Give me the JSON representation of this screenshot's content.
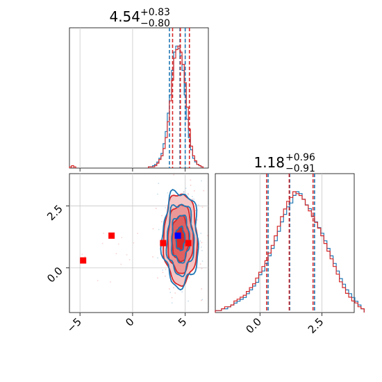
{
  "chart_data": {
    "type": "scatter",
    "subtype": "corner-plot",
    "colors": {
      "blue": "#1f77b4",
      "red": "#d62728",
      "grid": "#c8c8c8",
      "marker_blue": "#0000ff",
      "marker_red": "#ff0000"
    },
    "parameters": [
      {
        "title_value": "4.54",
        "title_plus": "+0.83",
        "title_minus": "−0.80",
        "range": [
          -6.0,
          7.2
        ],
        "ticks": [
          -5,
          0,
          5
        ],
        "tick_labels": [
          "−5",
          "0",
          "5"
        ],
        "quantiles_blue": [
          3.5,
          4.5,
          5.0
        ],
        "quantiles_red": [
          3.8,
          4.54,
          5.4
        ],
        "grid_lines": [
          -5,
          0,
          5
        ]
      },
      {
        "title_value": "1.18",
        "title_plus": "+0.96",
        "title_minus": "−0.91",
        "range": [
          -1.8,
          3.8
        ],
        "ticks": [
          0.0,
          2.5
        ],
        "tick_labels": [
          "0.0",
          "2.5"
        ],
        "quantiles_blue": [
          0.33,
          1.2,
          2.2
        ],
        "quantiles_red": [
          0.27,
          1.18,
          2.14
        ],
        "grid_lines": [
          0.0,
          2.5
        ]
      }
    ],
    "hist_1d": [
      {
        "bin_start": 1.5,
        "bin_width": 0.2,
        "blue": [
          1,
          1,
          2,
          3,
          5,
          8,
          12,
          20,
          30,
          45,
          60,
          80,
          95,
          100,
          98,
          92,
          80,
          60,
          40,
          25,
          15,
          8,
          5,
          3,
          2,
          1
        ],
        "red": [
          1,
          1,
          1,
          2,
          4,
          7,
          10,
          16,
          25,
          38,
          55,
          72,
          90,
          97,
          100,
          95,
          85,
          70,
          50,
          32,
          18,
          10,
          6,
          3,
          2,
          1
        ],
        "red_tail": [
          [
            -6.0,
            1
          ],
          [
            -5.8,
            2
          ],
          [
            -5.6,
            1
          ]
        ]
      },
      {
        "bin_start": -1.8,
        "bin_width": 0.125,
        "blue": [
          1,
          1,
          2,
          2,
          3,
          4,
          5,
          6,
          7,
          8,
          10,
          12,
          14,
          16,
          20,
          22,
          26,
          30,
          34,
          38,
          43,
          48,
          52,
          56,
          58,
          62,
          64,
          63,
          60,
          57,
          55,
          51,
          48,
          45,
          42,
          38,
          34,
          30,
          26,
          22,
          18,
          15,
          12,
          10,
          8,
          6,
          4,
          2
        ],
        "red": [
          1,
          1,
          2,
          3,
          3,
          4,
          6,
          7,
          8,
          9,
          11,
          13,
          15,
          18,
          21,
          24,
          27,
          31,
          35,
          40,
          45,
          50,
          54,
          58,
          60,
          63,
          62,
          61,
          59,
          56,
          53,
          50,
          47,
          44,
          40,
          36,
          32,
          28,
          24,
          20,
          16,
          13,
          10,
          8,
          6,
          5,
          3,
          2
        ]
      }
    ],
    "markers_2d": [
      {
        "color": "red",
        "x": -4.7,
        "y": 0.3
      },
      {
        "color": "red",
        "x": -2.0,
        "y": 1.3
      },
      {
        "color": "red",
        "x": 2.9,
        "y": 1.0
      },
      {
        "color": "red",
        "x": 5.3,
        "y": 1.0
      },
      {
        "color": "blue",
        "x": 4.3,
        "y": 1.3
      }
    ],
    "contours_2d": {
      "center": [
        4.54,
        1.18
      ],
      "blue_sigma": [
        0.85,
        0.95
      ],
      "red_sigma": [
        0.8,
        0.92
      ],
      "levels": [
        0.5,
        1.0,
        1.5,
        2.0
      ]
    }
  }
}
